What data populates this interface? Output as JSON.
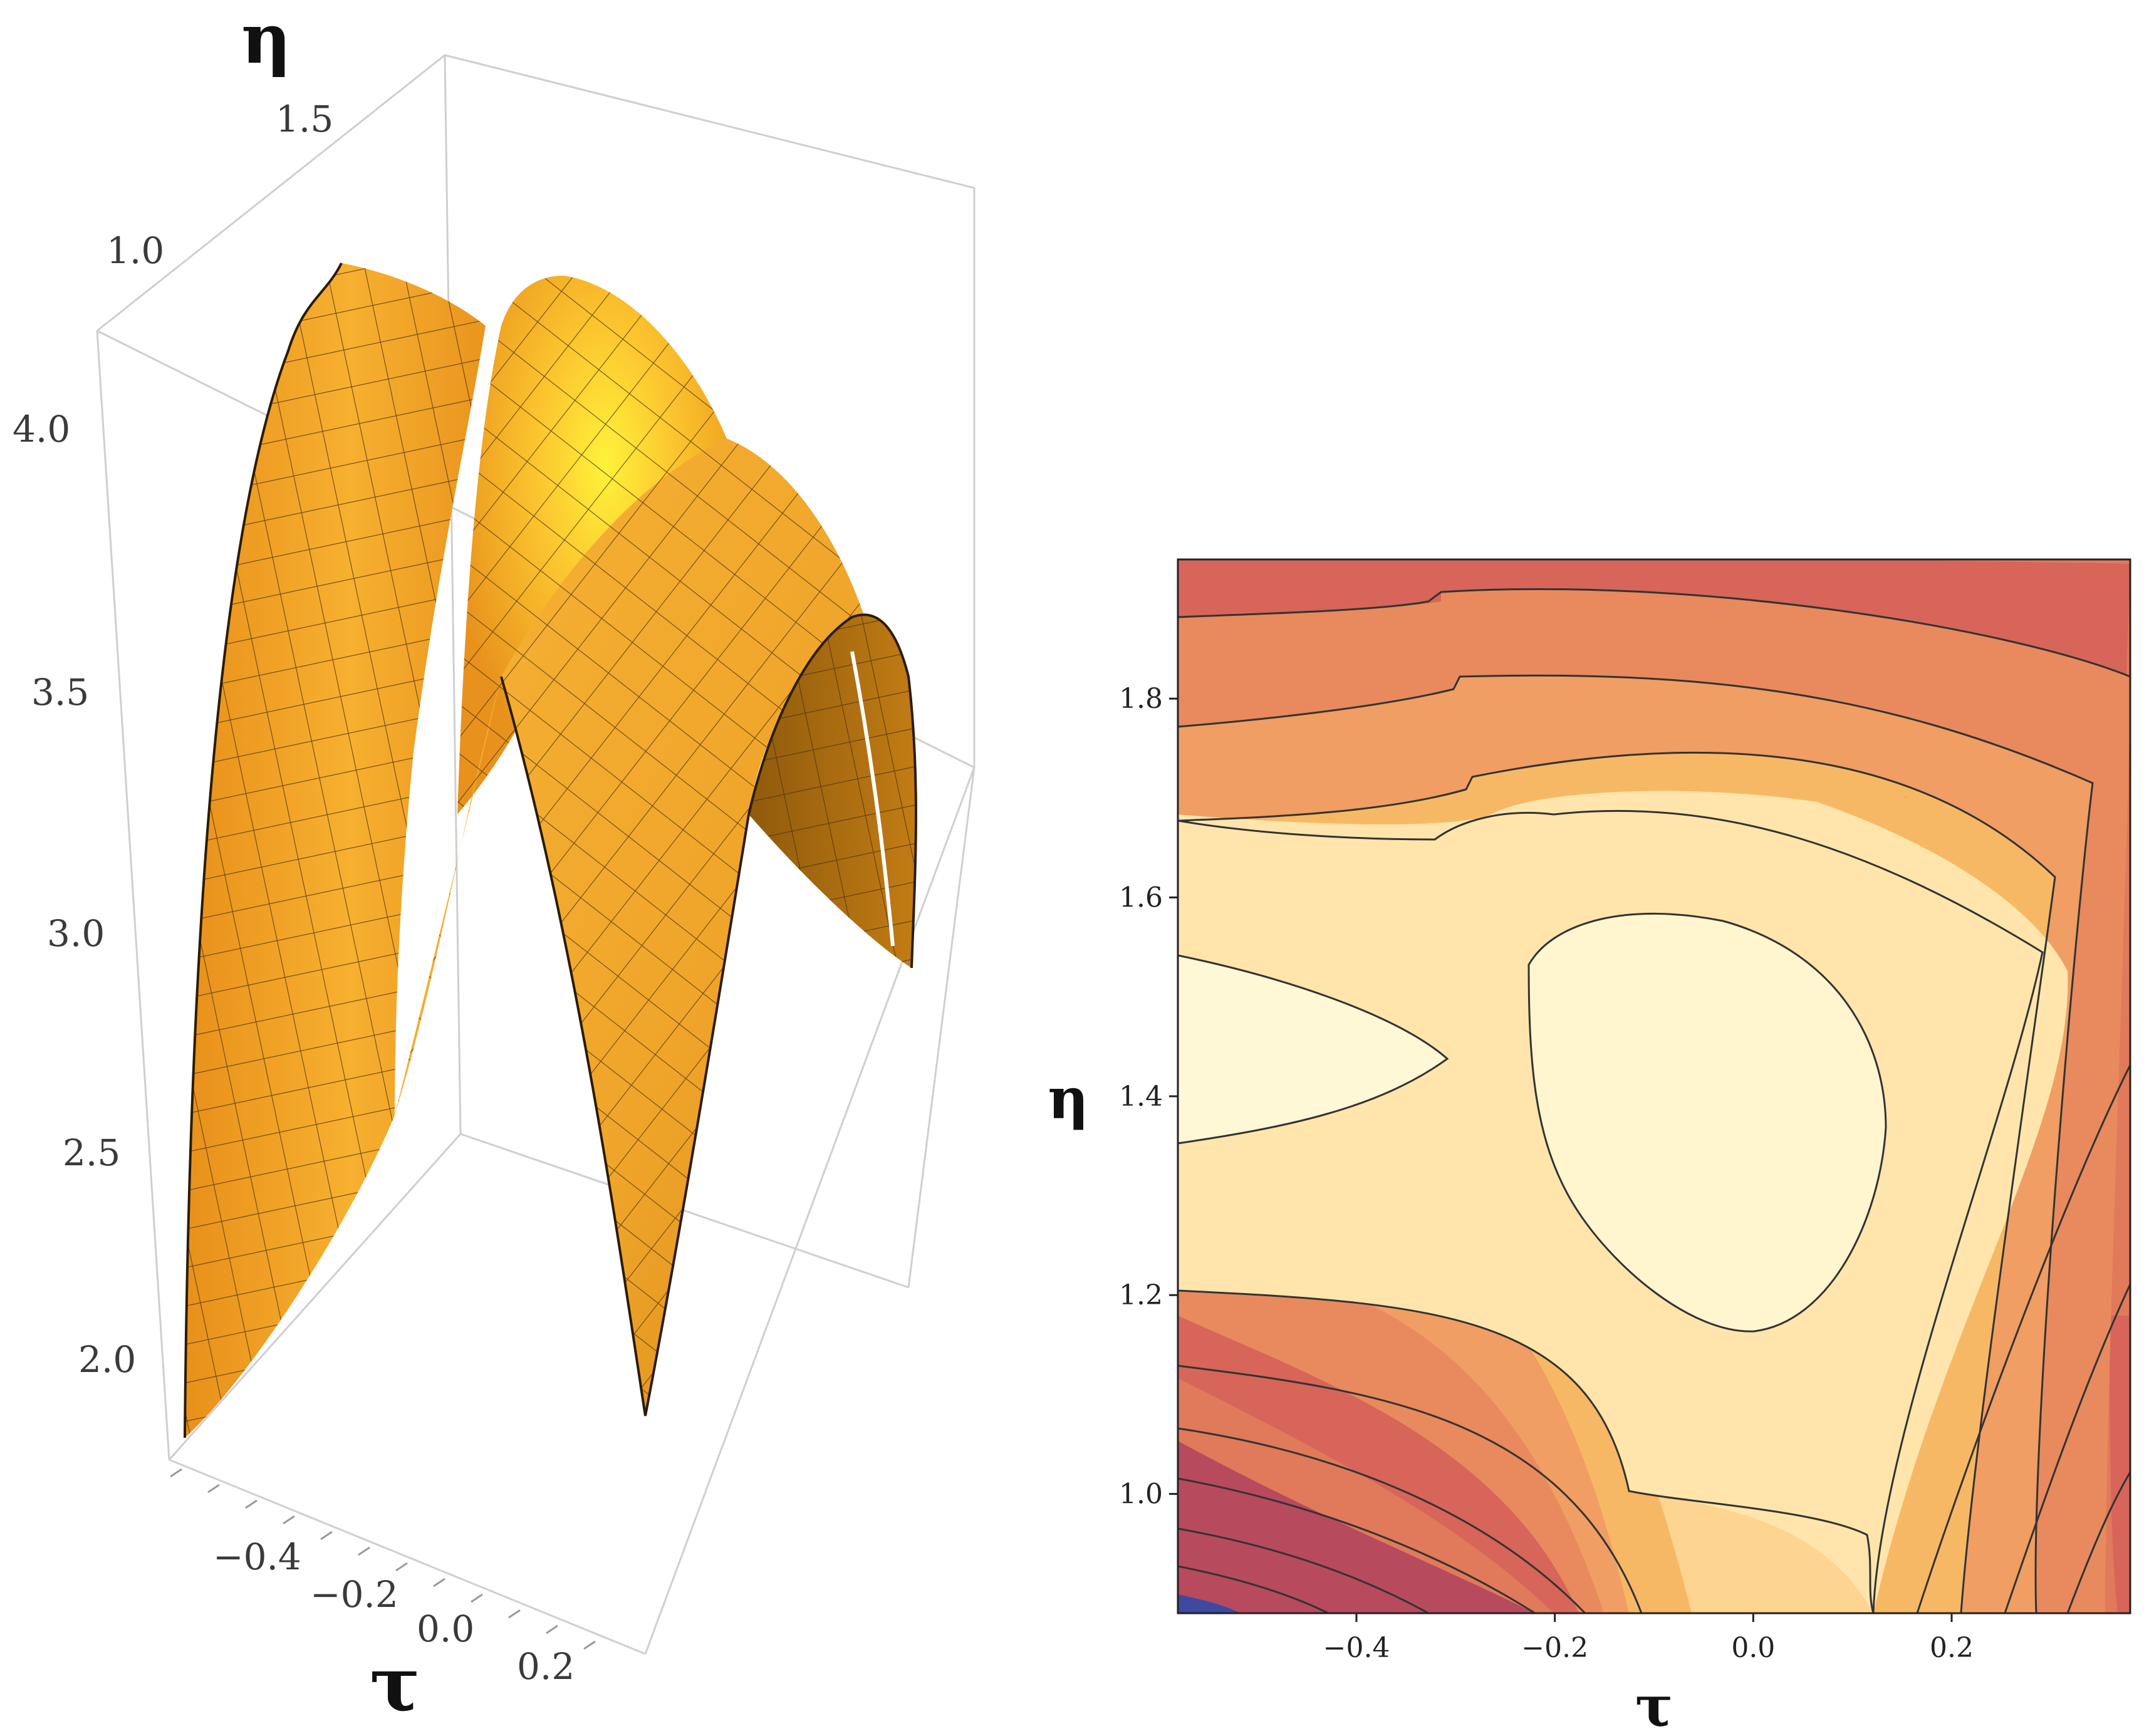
{
  "chart_data": [
    {
      "type": "surface3d",
      "axes": {
        "x": {
          "label": "τ",
          "ticks": [
            "−0.4",
            "−0.2",
            "0.0",
            "0.2"
          ]
        },
        "y": {
          "label": "η",
          "ticks": [
            "1.0",
            "1.5"
          ]
        },
        "z": {
          "ticks": [
            "2.0",
            "2.5",
            "3.0",
            "3.5",
            "4.0"
          ],
          "range": [
            1.8,
            4.2
          ]
        }
      },
      "colors": {
        "surface_main": "#f5a623",
        "surface_highlight": "#ffe94a",
        "surface_shadow": "#a8670a",
        "mesh": "#3a2a10",
        "box": "#c8c8c8"
      }
    },
    {
      "type": "contour",
      "xlabel": "τ",
      "ylabel": "η",
      "xlim": [
        -0.58,
        0.38
      ],
      "ylim": [
        0.88,
        1.94
      ],
      "xticks": [
        -0.4,
        -0.2,
        0.0,
        0.2
      ],
      "yticks": [
        1.0,
        1.2,
        1.4,
        1.6,
        1.8
      ],
      "xtick_labels": [
        "−0.4",
        "−0.2",
        "0.0",
        "0.2"
      ],
      "ytick_labels": [
        "1.0",
        "1.2",
        "1.4",
        "1.6",
        "1.8"
      ],
      "levels": 11,
      "colors": {
        "low": "#3d4aa0",
        "mid_low": "#b84a5e",
        "mid": "#e07a5a",
        "mid_high": "#f7b865",
        "high": "#fffbd8",
        "contour_line": "#333333"
      }
    }
  ]
}
